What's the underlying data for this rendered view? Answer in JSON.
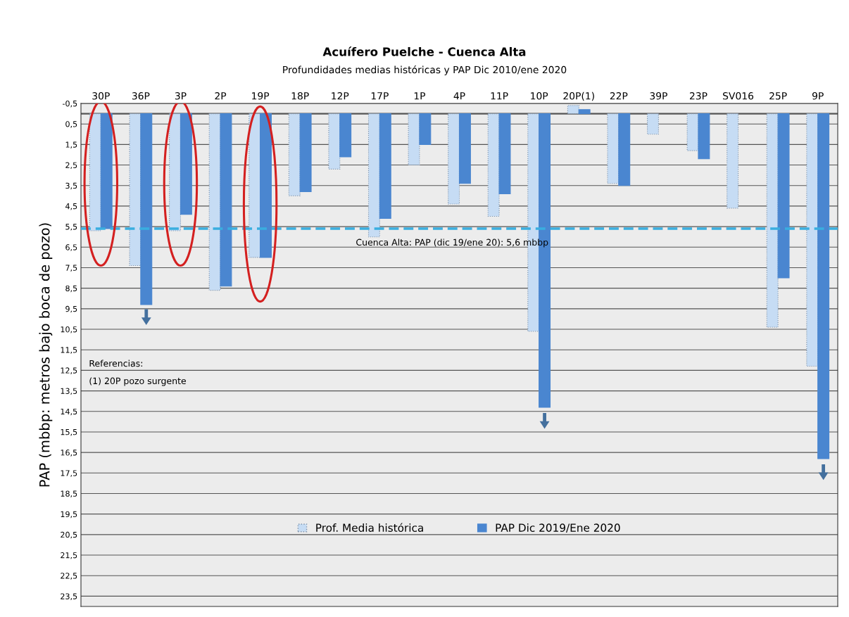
{
  "chart_data": {
    "type": "bar",
    "title": "Acuífero Puelche - Cuenca Alta",
    "subtitle": "Profundidades medias históricas y PAP Dic 2010/ene 2020",
    "ylabel": "PAP (mbbp: metros bajo boca de pozo)",
    "categories": [
      "30P",
      "36P",
      "3P",
      "2P",
      "19P",
      "18P",
      "12P",
      "17P",
      "1P",
      "4P",
      "11P",
      "10P",
      "20P(1)",
      "22P",
      "39P",
      "23P",
      "SV016",
      "25P",
      "9P"
    ],
    "series": [
      {
        "name": "Prof. Media histórica",
        "color": "#c6dcf4",
        "values": [
          5.7,
          7.4,
          5.7,
          8.6,
          7.0,
          4.0,
          2.7,
          6.0,
          2.5,
          4.4,
          5.0,
          10.6,
          -0.4,
          3.4,
          1.0,
          1.8,
          4.6,
          10.4,
          12.3
        ]
      },
      {
        "name": "PAP Dic 2019/Ene 2020",
        "color": "#4a86d0",
        "values": [
          5.6,
          9.3,
          4.9,
          8.4,
          7.0,
          3.8,
          2.1,
          5.1,
          1.5,
          3.4,
          3.9,
          14.3,
          -0.2,
          3.5,
          null,
          2.2,
          null,
          8.0,
          16.8
        ]
      }
    ],
    "ylim": [
      24,
      -0.5
    ],
    "yticks": [
      {
        "value": -0.5,
        "label": "-0,5"
      },
      {
        "value": 0.5,
        "label": "0,5"
      },
      {
        "value": 1.5,
        "label": "1,5"
      },
      {
        "value": 2.5,
        "label": "2,5"
      },
      {
        "value": 3.5,
        "label": "3,5"
      },
      {
        "value": 4.5,
        "label": "4,5"
      },
      {
        "value": 5.5,
        "label": "5,5"
      },
      {
        "value": 6.5,
        "label": "6,5"
      },
      {
        "value": 7.5,
        "label": "7,5"
      },
      {
        "value": 8.5,
        "label": "8,5"
      },
      {
        "value": 9.5,
        "label": "9,5"
      },
      {
        "value": 10.5,
        "label": "10,5"
      },
      {
        "value": 11.5,
        "label": "11,5"
      },
      {
        "value": 12.5,
        "label": "12,5"
      },
      {
        "value": 13.5,
        "label": "13,5"
      },
      {
        "value": 14.5,
        "label": "14,5"
      },
      {
        "value": 15.5,
        "label": "15,5"
      },
      {
        "value": 16.5,
        "label": "16,5"
      },
      {
        "value": 17.5,
        "label": "17,5"
      },
      {
        "value": 18.5,
        "label": "18,5"
      },
      {
        "value": 19.5,
        "label": "19,5"
      },
      {
        "value": 20.5,
        "label": "20,5"
      },
      {
        "value": 21.5,
        "label": "21,5"
      },
      {
        "value": 22.5,
        "label": "22,5"
      },
      {
        "value": 23.5,
        "label": "23,5"
      }
    ],
    "ref_lines": [
      {
        "axis": "y",
        "value": 5.6,
        "label": "Cuenca Alta: PAP (dic 19/ene 20): 5,6 mbbp",
        "color": "#3aaee0",
        "line_style": "dashed"
      }
    ],
    "annotations": [
      "Referencias:",
      "(1) 20P pozo surgente"
    ],
    "grid": "y",
    "legend": "bottom"
  }
}
